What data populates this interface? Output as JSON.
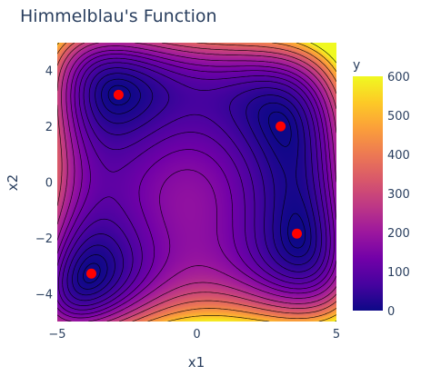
{
  "chart_data": {
    "type": "heatmap",
    "title": "Himmelblau's Function",
    "xlabel": "x1",
    "ylabel": "x2",
    "xlim": [
      -5,
      5
    ],
    "ylim": [
      -5,
      5
    ],
    "x_ticks": [
      -5,
      0,
      5
    ],
    "y_ticks": [
      -4,
      -2,
      0,
      2,
      4
    ],
    "x_tick_labels": [
      "−5",
      "0",
      "5"
    ],
    "y_tick_labels": [
      "−4",
      "−2",
      "0",
      "2",
      "4"
    ],
    "z_function": "(x1^2 + x2 - 11)^2 + (x1 + x2^2 - 7)^2",
    "colorbar": {
      "title": "y",
      "range": [
        0,
        600
      ],
      "ticks": [
        0,
        100,
        200,
        300,
        400,
        500,
        600
      ],
      "tick_labels": [
        "0",
        "100",
        "200",
        "300",
        "400",
        "500",
        "600"
      ]
    },
    "contour_levels": [
      5,
      15,
      30,
      50,
      75,
      100,
      130,
      160,
      200,
      250,
      300,
      360,
      430,
      510,
      600
    ],
    "colorscale": [
      "#0d0887",
      "#46039f",
      "#7201a8",
      "#9c179e",
      "#bd3786",
      "#d8576b",
      "#ed7953",
      "#fb9f3a",
      "#fdca26",
      "#f0f921"
    ],
    "minima": {
      "name": "",
      "color": "#ff0000",
      "points": [
        {
          "x1": 3.0,
          "x2": 2.0
        },
        {
          "x1": -2.805,
          "x2": 3.131
        },
        {
          "x1": -3.779,
          "x2": -3.283
        },
        {
          "x1": 3.584,
          "x2": -1.848
        }
      ]
    },
    "grid": false,
    "legend": "none"
  }
}
